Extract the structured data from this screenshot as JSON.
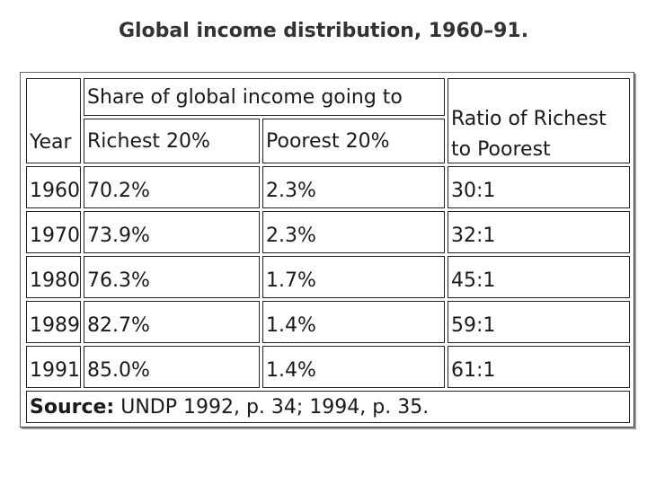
{
  "title": "Global income distribution, 1960–91.",
  "headers": {
    "year": "Year",
    "share_group": "Share of global income going to",
    "richest": "Richest 20%",
    "poorest": "Poorest 20%",
    "ratio_line1": "Ratio of Richest",
    "ratio_line2": "to Poorest"
  },
  "rows": [
    {
      "year": "1960",
      "richest": "70.2%",
      "poorest": "2.3%",
      "ratio": "30:1"
    },
    {
      "year": "1970",
      "richest": "73.9%",
      "poorest": "2.3%",
      "ratio": "32:1"
    },
    {
      "year": "1980",
      "richest": "76.3%",
      "poorest": "1.7%",
      "ratio": "45:1"
    },
    {
      "year": "1989",
      "richest": "82.7%",
      "poorest": "1.4%",
      "ratio": "59:1"
    },
    {
      "year": "1991",
      "richest": "85.0%",
      "poorest": "1.4%",
      "ratio": "61:1"
    }
  ],
  "source": {
    "label": "Source:",
    "text": " UNDP 1992, p. 34; 1994, p. 35."
  }
}
